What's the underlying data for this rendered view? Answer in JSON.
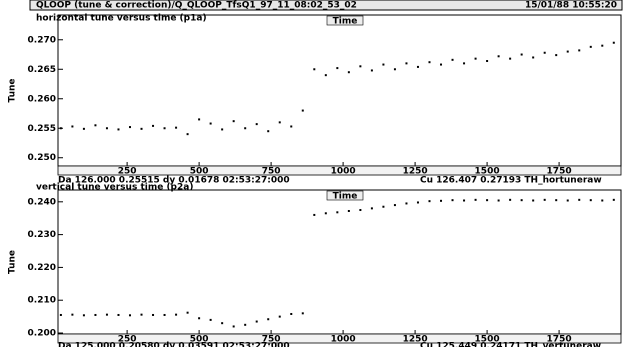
{
  "window": {
    "title": "QLOOP (tune & correction)/Q_QLOOP_TfsQ1_97_11_08:02_53_02",
    "timestamp": "15/01/88 10:55:20"
  },
  "chart_data": [
    {
      "type": "scatter",
      "title": "horizontal tune versus time (p1a)",
      "xlabel": "Time",
      "ylabel": "Tune",
      "color": "#000000",
      "readout": "Da 126.000 0.25515 dy 0.01678 02:53:27:000",
      "cursor": "Cu 126.407 0.27193 TH_hortuneraw",
      "xlim": [
        10,
        1965
      ],
      "xticks": [
        250,
        500,
        750,
        1000,
        1250,
        1500,
        1750
      ],
      "ylim": [
        0.2486,
        0.2742
      ],
      "yticks": [
        {
          "value": 0.25,
          "label": "0.250"
        },
        {
          "value": 0.255,
          "label": "0.255"
        },
        {
          "value": 0.26,
          "label": "0.260"
        },
        {
          "value": 0.265,
          "label": "0.265"
        },
        {
          "value": 0.27,
          "label": "0.270"
        }
      ],
      "x": [
        20,
        60,
        100,
        140,
        180,
        220,
        260,
        300,
        340,
        380,
        420,
        460,
        500,
        540,
        580,
        620,
        660,
        700,
        740,
        780,
        820,
        860,
        900,
        940,
        980,
        1020,
        1060,
        1100,
        1140,
        1180,
        1220,
        1260,
        1300,
        1340,
        1380,
        1420,
        1460,
        1500,
        1540,
        1580,
        1620,
        1660,
        1700,
        1740,
        1780,
        1820,
        1860,
        1900,
        1940
      ],
      "values": [
        0.255,
        0.2553,
        0.2549,
        0.2555,
        0.255,
        0.2548,
        0.2552,
        0.2549,
        0.2554,
        0.255,
        0.2551,
        0.254,
        0.2565,
        0.2558,
        0.2548,
        0.2562,
        0.255,
        0.2557,
        0.2545,
        0.256,
        0.2553,
        0.258,
        0.265,
        0.264,
        0.2652,
        0.2645,
        0.2655,
        0.2648,
        0.2658,
        0.265,
        0.266,
        0.2654,
        0.2662,
        0.2658,
        0.2666,
        0.266,
        0.2668,
        0.2664,
        0.2672,
        0.2668,
        0.2675,
        0.267,
        0.2678,
        0.2674,
        0.268,
        0.2682,
        0.2688,
        0.269,
        0.2695
      ]
    },
    {
      "type": "scatter",
      "title": "vertical tune versus time (p2a)",
      "xlabel": "Time",
      "ylabel": "Tune",
      "color": "#000000",
      "readout": "Da 125.000 0.20580 dy 0.03591 02:53:27:000",
      "cursor": "Cu 125.449 0.24171 TH_vertuneraw",
      "xlim": [
        10,
        1965
      ],
      "xticks": [
        250,
        500,
        750,
        1000,
        1250,
        1500,
        1750
      ],
      "ylim": [
        0.1997,
        0.2436
      ],
      "yticks": [
        {
          "value": 0.2,
          "label": "0.200"
        },
        {
          "value": 0.21,
          "label": "0.210"
        },
        {
          "value": 0.22,
          "label": "0.220"
        },
        {
          "value": 0.23,
          "label": "0.230"
        },
        {
          "value": 0.24,
          "label": "0.240"
        }
      ],
      "x": [
        20,
        60,
        100,
        140,
        180,
        220,
        260,
        300,
        340,
        380,
        420,
        460,
        500,
        540,
        580,
        620,
        660,
        700,
        740,
        780,
        820,
        860,
        900,
        940,
        980,
        1020,
        1060,
        1100,
        1140,
        1180,
        1220,
        1260,
        1300,
        1340,
        1380,
        1420,
        1460,
        1500,
        1540,
        1580,
        1620,
        1660,
        1700,
        1740,
        1780,
        1820,
        1860,
        1900,
        1940
      ],
      "values": [
        0.2055,
        0.2056,
        0.2054,
        0.2055,
        0.2056,
        0.2055,
        0.2054,
        0.2056,
        0.2055,
        0.2055,
        0.2056,
        0.2062,
        0.2045,
        0.204,
        0.203,
        0.202,
        0.2025,
        0.2035,
        0.2042,
        0.205,
        0.2058,
        0.206,
        0.236,
        0.2365,
        0.2368,
        0.2372,
        0.2375,
        0.238,
        0.2385,
        0.239,
        0.2395,
        0.2398,
        0.2402,
        0.2403,
        0.2405,
        0.2404,
        0.2406,
        0.2405,
        0.2404,
        0.2406,
        0.2405,
        0.2404,
        0.2406,
        0.2405,
        0.2404,
        0.2406,
        0.2405,
        0.2404,
        0.2406
      ]
    }
  ]
}
